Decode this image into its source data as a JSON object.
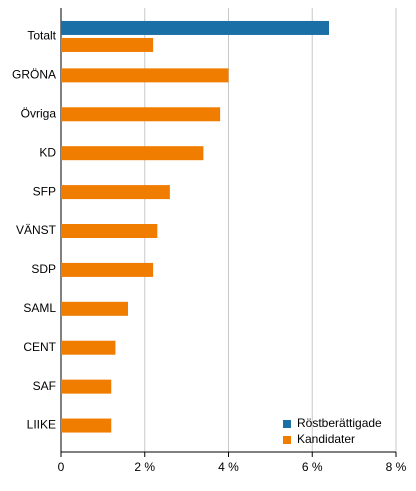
{
  "chart_data": {
    "type": "bar",
    "orientation": "horizontal",
    "categories": [
      "Totalt",
      "GRÖNA",
      "Övriga",
      "KD",
      "SFP",
      "VÄNST",
      "SDP",
      "SAML",
      "CENT",
      "SAF",
      "LIIKE"
    ],
    "series": [
      {
        "name": "Röstberättigade",
        "color": "#1a6fa6",
        "values": [
          6.4,
          null,
          null,
          null,
          null,
          null,
          null,
          null,
          null,
          null,
          null
        ]
      },
      {
        "name": "Kandidater",
        "color": "#f07c00",
        "values": [
          2.2,
          4.0,
          3.8,
          3.4,
          2.6,
          2.3,
          2.2,
          1.6,
          1.3,
          1.2,
          1.2
        ]
      }
    ],
    "xlim": [
      0,
      8
    ],
    "xticks": [
      0,
      {
        "value": 2,
        "label": "2 %"
      },
      {
        "value": 4,
        "label": "4 %"
      },
      {
        "value": 6,
        "label": "6 %"
      },
      {
        "value": 8,
        "label": "8 %"
      }
    ],
    "grid": true,
    "legend": "bottom-right"
  }
}
